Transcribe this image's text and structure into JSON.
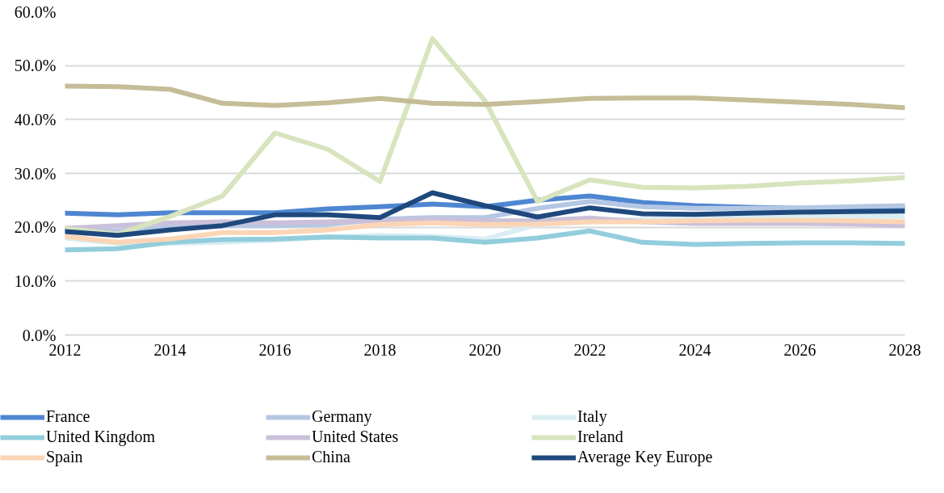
{
  "chart_data": {
    "type": "line",
    "x": [
      2012,
      2013,
      2014,
      2015,
      2016,
      2017,
      2018,
      2019,
      2020,
      2021,
      2022,
      2023,
      2024,
      2025,
      2026,
      2027,
      2028
    ],
    "xlim": [
      2012,
      2028
    ],
    "xticks": [
      2012,
      2014,
      2016,
      2018,
      2020,
      2022,
      2024,
      2026,
      2028
    ],
    "ylim": [
      0,
      60
    ],
    "yticks": [
      {
        "value": 0,
        "label": "0.0%"
      },
      {
        "value": 10,
        "label": "10.0%"
      },
      {
        "value": 20,
        "label": "20.0%"
      },
      {
        "value": 30,
        "label": "30.0%"
      },
      {
        "value": 40,
        "label": "40.0%"
      },
      {
        "value": 50,
        "label": "50.0%"
      },
      {
        "value": 60,
        "label": "60.0%"
      }
    ],
    "grid": "y",
    "legend": "bottom",
    "marker": "none",
    "line_style": "solid",
    "series": [
      {
        "name": "France",
        "color": "#4e86d1",
        "values": [
          22.6,
          22.3,
          22.7,
          22.7,
          22.7,
          23.4,
          23.8,
          24.3,
          23.8,
          25.0,
          25.8,
          24.6,
          24.0,
          23.7,
          23.5,
          23.5,
          23.6
        ]
      },
      {
        "name": "Germany",
        "color": "#b4c7e3",
        "values": [
          19.5,
          19.3,
          20.0,
          20.3,
          20.3,
          20.5,
          21.5,
          21.8,
          21.8,
          23.5,
          24.8,
          23.8,
          23.5,
          23.5,
          23.6,
          23.8,
          24.0
        ]
      },
      {
        "name": "Italy",
        "color": "#daedf3",
        "values": [
          18.0,
          17.0,
          17.0,
          17.2,
          17.6,
          18.2,
          18.5,
          18.3,
          17.8,
          20.5,
          21.0,
          21.5,
          21.8,
          22.0,
          22.0,
          22.0,
          22.0
        ]
      },
      {
        "name": "United Kingdom",
        "color": "#92cddc",
        "values": [
          15.8,
          16.0,
          17.2,
          17.7,
          17.8,
          18.2,
          18.0,
          18.0,
          17.2,
          18.0,
          19.3,
          17.2,
          16.8,
          17.0,
          17.1,
          17.1,
          17.0
        ]
      },
      {
        "name": "United States",
        "color": "#cbc0da",
        "values": [
          19.8,
          20.3,
          20.8,
          21.0,
          20.8,
          21.0,
          21.2,
          21.5,
          21.2,
          21.2,
          21.7,
          21.0,
          20.7,
          20.7,
          20.7,
          20.6,
          20.3
        ]
      },
      {
        "name": "Ireland",
        "color": "#d7e4bd",
        "values": [
          19.8,
          18.7,
          22.0,
          25.8,
          37.5,
          34.5,
          28.5,
          55.0,
          43.5,
          24.8,
          28.8,
          27.4,
          27.3,
          27.6,
          28.2,
          28.6,
          29.2
        ]
      },
      {
        "name": "Spain",
        "color": "#fbd5b5",
        "values": [
          18.3,
          17.2,
          17.8,
          19.0,
          19.0,
          19.5,
          20.5,
          20.8,
          20.5,
          20.6,
          21.0,
          21.0,
          21.2,
          21.3,
          21.3,
          21.2,
          21.0
        ]
      },
      {
        "name": "China",
        "color": "#c4bd97",
        "values": [
          46.2,
          46.1,
          45.6,
          43.0,
          42.6,
          43.1,
          43.9,
          43.0,
          42.8,
          43.3,
          43.9,
          44.0,
          44.0,
          43.6,
          43.2,
          42.8,
          42.2
        ]
      },
      {
        "name": "Average Key Europe",
        "color": "#1f497d",
        "values": [
          19.2,
          18.5,
          19.5,
          20.3,
          22.3,
          22.3,
          21.8,
          26.4,
          24.0,
          21.9,
          23.6,
          22.5,
          22.4,
          22.6,
          22.8,
          22.9,
          23.0
        ]
      }
    ]
  }
}
